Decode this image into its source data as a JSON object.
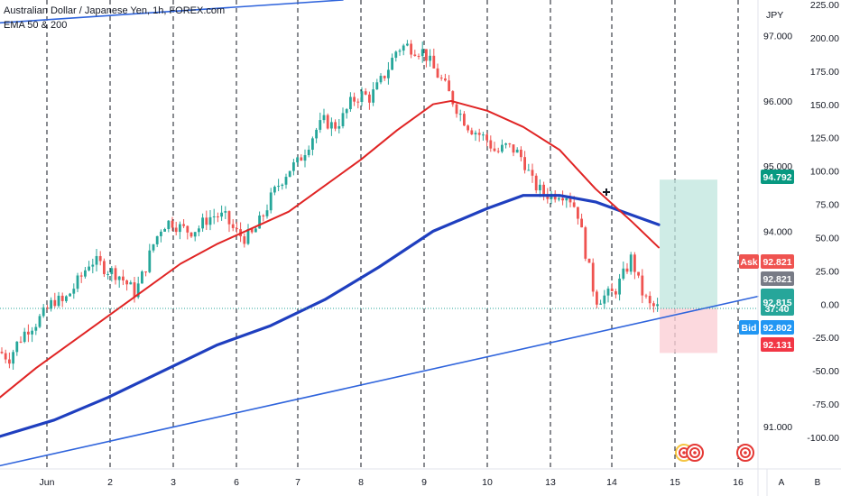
{
  "legend": {
    "title": "Australian Dollar / Japanese Yen, 1h, FOREX.com",
    "indicator": "EMA 50 & 200"
  },
  "colors": {
    "bull": "#26a69a",
    "bear": "#ef5350",
    "ema50": "#e02424",
    "ema200": "#1f3fbf",
    "trendline": "#2f64dc",
    "ask_tag": "#ef5350",
    "bid_tag": "#2196f3",
    "last_tag": "#26a69a",
    "neutral_tag": "#787b86",
    "target_tag": "#089981",
    "stop_tag": "#f23645",
    "profit_zone": "#bfe6dd",
    "loss_zone": "#fbd0d6"
  },
  "chart_data": {
    "type": "candlestick",
    "symbol": "Australian Dollar / Japanese Yen",
    "timeframe": "1h",
    "source": "FOREX.com",
    "x_ticks": [
      "Jun",
      "2",
      "3",
      "6",
      "7",
      "8",
      "9",
      "10",
      "13",
      "14",
      "15",
      "16"
    ],
    "y_ticks_price": [
      91.0,
      92.0,
      93.0,
      94.0,
      95.0,
      96.0,
      97.0
    ],
    "y_ticks_price_labels": [
      "91.000",
      "",
      "",
      "94.000",
      "95.000",
      "96.000",
      "97.000"
    ],
    "y_ticks_secondary": [
      225,
      200,
      175,
      150,
      125,
      100,
      75,
      50,
      25,
      0,
      -25,
      -50,
      -75,
      -100
    ],
    "y_ticks_secondary_labels": [
      "225.00",
      "200.00",
      "175.00",
      "150.00",
      "125.00",
      "100.00",
      "75.00",
      "50.00",
      "25.00",
      "0.00",
      "-25.00",
      "-50.00",
      "-75.00",
      "-100.00"
    ],
    "y_unit": "JPY",
    "ylim": [
      90.35,
      97.55
    ],
    "xlim": [
      0,
      850
    ],
    "session_separators": [
      52,
      122,
      192,
      262,
      330,
      400,
      470,
      540,
      610,
      678,
      748,
      818
    ],
    "price_path": [
      [
        0,
        92.15
      ],
      [
        10,
        92.05
      ],
      [
        20,
        92.3
      ],
      [
        30,
        92.5
      ],
      [
        40,
        92.6
      ],
      [
        50,
        92.75
      ],
      [
        60,
        92.95
      ],
      [
        70,
        92.9
      ],
      [
        80,
        93.1
      ],
      [
        90,
        93.3
      ],
      [
        100,
        93.55
      ],
      [
        110,
        93.5
      ],
      [
        120,
        93.4
      ],
      [
        130,
        93.35
      ],
      [
        140,
        93.2
      ],
      [
        150,
        93.05
      ],
      [
        160,
        93.4
      ],
      [
        170,
        93.8
      ],
      [
        180,
        94.1
      ],
      [
        190,
        94.15
      ],
      [
        200,
        94.05
      ],
      [
        210,
        94.0
      ],
      [
        220,
        94.05
      ],
      [
        230,
        94.2
      ],
      [
        240,
        94.25
      ],
      [
        250,
        94.2
      ],
      [
        260,
        94.0
      ],
      [
        270,
        93.9
      ],
      [
        280,
        93.95
      ],
      [
        290,
        94.2
      ],
      [
        300,
        94.5
      ],
      [
        310,
        94.75
      ],
      [
        320,
        94.95
      ],
      [
        330,
        95.05
      ],
      [
        340,
        95.3
      ],
      [
        350,
        95.55
      ],
      [
        360,
        95.7
      ],
      [
        370,
        95.6
      ],
      [
        380,
        95.75
      ],
      [
        390,
        96.0
      ],
      [
        400,
        96.1
      ],
      [
        410,
        96.05
      ],
      [
        420,
        96.25
      ],
      [
        430,
        96.5
      ],
      [
        440,
        96.8
      ],
      [
        450,
        96.85
      ],
      [
        460,
        96.8
      ],
      [
        470,
        96.75
      ],
      [
        480,
        96.5
      ],
      [
        490,
        96.3
      ],
      [
        500,
        96.05
      ],
      [
        510,
        95.8
      ],
      [
        520,
        95.6
      ],
      [
        530,
        95.5
      ],
      [
        540,
        95.4
      ],
      [
        550,
        95.2
      ],
      [
        560,
        95.3
      ],
      [
        570,
        95.25
      ],
      [
        580,
        95.1
      ],
      [
        590,
        94.75
      ],
      [
        600,
        94.6
      ],
      [
        610,
        94.55
      ],
      [
        620,
        94.6
      ],
      [
        630,
        94.55
      ],
      [
        640,
        94.3
      ],
      [
        650,
        93.6
      ],
      [
        660,
        92.95
      ],
      [
        670,
        93.0
      ],
      [
        680,
        93.05
      ],
      [
        690,
        93.3
      ],
      [
        700,
        93.6
      ],
      [
        710,
        93.1
      ],
      [
        720,
        92.85
      ],
      [
        730,
        92.82
      ]
    ],
    "ema50": [
      [
        0,
        91.45
      ],
      [
        40,
        91.9
      ],
      [
        80,
        92.3
      ],
      [
        120,
        92.7
      ],
      [
        160,
        93.1
      ],
      [
        200,
        93.5
      ],
      [
        240,
        93.8
      ],
      [
        280,
        94.05
      ],
      [
        320,
        94.3
      ],
      [
        360,
        94.7
      ],
      [
        400,
        95.1
      ],
      [
        440,
        95.55
      ],
      [
        480,
        95.95
      ],
      [
        500,
        96.0
      ],
      [
        540,
        95.85
      ],
      [
        580,
        95.6
      ],
      [
        620,
        95.25
      ],
      [
        660,
        94.65
      ],
      [
        700,
        94.15
      ],
      [
        730,
        93.75
      ]
    ],
    "ema200": [
      [
        0,
        90.85
      ],
      [
        60,
        91.1
      ],
      [
        120,
        91.45
      ],
      [
        180,
        91.85
      ],
      [
        240,
        92.25
      ],
      [
        300,
        92.55
      ],
      [
        360,
        92.95
      ],
      [
        420,
        93.45
      ],
      [
        480,
        94.0
      ],
      [
        540,
        94.35
      ],
      [
        580,
        94.55
      ],
      [
        620,
        94.55
      ],
      [
        660,
        94.45
      ],
      [
        700,
        94.25
      ],
      [
        730,
        94.1
      ]
    ],
    "trendline_lower": [
      [
        0,
        90.4
      ],
      [
        840,
        93.0
      ]
    ],
    "trendline_upper": [
      [
        0,
        97.2
      ],
      [
        380,
        97.55
      ]
    ],
    "position": {
      "entry": 92.815,
      "target": 94.792,
      "stop": 92.131,
      "x_start": 731,
      "x_end": 795
    },
    "price_tags": {
      "target": "94.792",
      "ask_label": "Ask",
      "ask": "92.821",
      "mid": "92.821",
      "last": "92.815",
      "countdown": "37:40",
      "bid_label": "Bid",
      "bid": "92.802",
      "stop": "92.131"
    },
    "axis_buttons": [
      "A",
      "B"
    ],
    "dotted_price_line": 92.815,
    "crosshair_marker": {
      "x": 672,
      "price": 94.6
    }
  }
}
